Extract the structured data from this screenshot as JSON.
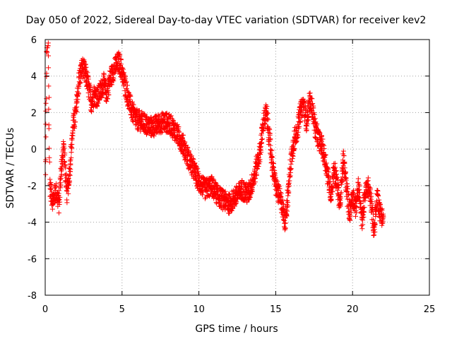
{
  "chart_data": {
    "type": "scatter",
    "title": "Day 050 of 2022, Sidereal Day-to-day VTEC variation (SDTVAR) for receiver kev2",
    "xlabel": "GPS time / hours",
    "ylabel": "SDTVAR / TECUs",
    "xlim": [
      0,
      25
    ],
    "ylim": [
      -8,
      6
    ],
    "x_ticks": [
      0,
      5,
      10,
      15,
      20,
      25
    ],
    "y_ticks": [
      -8,
      -6,
      -4,
      -2,
      0,
      2,
      4,
      6
    ],
    "x_tick_labels": [
      "0",
      "5",
      "10",
      "15",
      "20",
      "25"
    ],
    "y_tick_labels": [
      "-8",
      "-6",
      "-4",
      "-2",
      "0",
      "2",
      "4",
      "6"
    ],
    "grid": true,
    "marker": "+",
    "color": "#ff0000",
    "series": [
      {
        "name": "SDTVAR",
        "trend_x": [
          0.0,
          0.1,
          0.2,
          0.3,
          0.4,
          0.5,
          0.7,
          0.9,
          1.0,
          1.2,
          1.4,
          1.6,
          1.8,
          2.0,
          2.2,
          2.4,
          2.6,
          2.8,
          3.0,
          3.2,
          3.4,
          3.6,
          3.8,
          4.0,
          4.2,
          4.4,
          4.6,
          4.8,
          5.0,
          5.2,
          5.4,
          5.6,
          5.8,
          6.0,
          6.3,
          6.6,
          7.0,
          7.4,
          7.8,
          8.2,
          8.6,
          9.0,
          9.3,
          9.6,
          10.0,
          10.4,
          10.8,
          11.2,
          11.6,
          12.0,
          12.4,
          12.8,
          13.2,
          13.6,
          14.0,
          14.2,
          14.4,
          14.6,
          14.8,
          15.0,
          15.2,
          15.4,
          15.6,
          15.8,
          16.0,
          16.2,
          16.4,
          16.6,
          16.8,
          17.0,
          17.2,
          17.4,
          17.6,
          17.8,
          18.0,
          18.2,
          18.4,
          18.6,
          18.8,
          19.0,
          19.2,
          19.4,
          19.6,
          19.8,
          20.0,
          20.2,
          20.4,
          20.6,
          20.8,
          21.0,
          21.2,
          21.4,
          21.6,
          21.8,
          22.0
        ],
        "trend_y": [
          -2.2,
          5.6,
          5.8,
          -2.0,
          -2.5,
          -2.8,
          -2.3,
          -3.0,
          -1.5,
          0.2,
          -2.5,
          -1.2,
          1.2,
          2.0,
          3.8,
          4.5,
          4.2,
          3.5,
          2.5,
          3.0,
          2.8,
          3.2,
          3.6,
          3.0,
          3.8,
          4.2,
          4.6,
          4.8,
          4.2,
          3.5,
          2.8,
          2.2,
          1.8,
          1.6,
          1.5,
          1.3,
          1.2,
          1.4,
          1.5,
          1.3,
          0.8,
          0.2,
          -0.5,
          -1.0,
          -1.8,
          -2.2,
          -2.0,
          -2.5,
          -2.8,
          -3.0,
          -2.6,
          -2.2,
          -2.5,
          -1.5,
          0.0,
          1.5,
          2.0,
          0.5,
          -1.0,
          -2.0,
          -2.5,
          -3.0,
          -4.0,
          -2.5,
          -0.5,
          0.5,
          1.0,
          2.0,
          2.5,
          1.5,
          2.6,
          2.2,
          1.0,
          0.5,
          0.2,
          -0.5,
          -1.5,
          -2.5,
          -1.0,
          -2.0,
          -3.0,
          -0.5,
          -2.0,
          -3.5,
          -2.5,
          -3.2,
          -2.0,
          -4.0,
          -2.5,
          -2.0,
          -2.8,
          -4.5,
          -2.5,
          -3.5,
          -3.8
        ],
        "spread": 0.55
      }
    ]
  }
}
